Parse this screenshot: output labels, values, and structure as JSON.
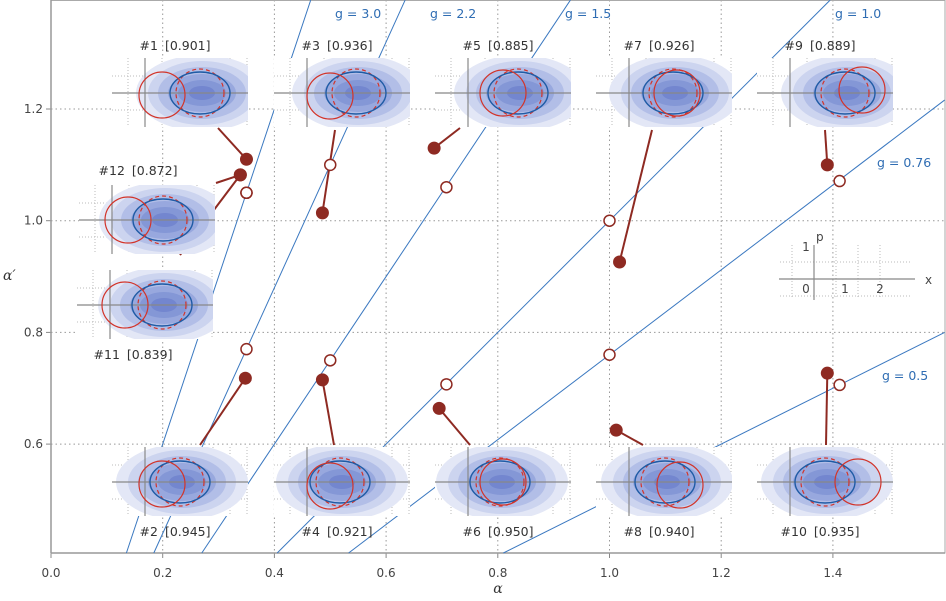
{
  "chart_data": {
    "type": "scatter",
    "xlabel": "α",
    "ylabel": "α′",
    "xlim": [
      0.0,
      1.6
    ],
    "ylim": [
      0.405,
      1.395
    ],
    "grid": true,
    "xticks": [
      {
        "value": 0.0,
        "label": "0.0"
      },
      {
        "value": 0.2,
        "label": "0.2"
      },
      {
        "value": 0.4,
        "label": "0.4"
      },
      {
        "value": 0.6,
        "label": "0.6"
      },
      {
        "value": 0.8,
        "label": "0.8"
      },
      {
        "value": 1.0,
        "label": "1.0"
      },
      {
        "value": 1.2,
        "label": "1.2"
      },
      {
        "value": 1.4,
        "label": "1.4"
      }
    ],
    "yticks": [
      {
        "value": 0.6,
        "label": "0.6"
      },
      {
        "value": 0.8,
        "label": "0.8"
      },
      {
        "value": 1.0,
        "label": "1.0"
      },
      {
        "value": 1.2,
        "label": "1.2"
      }
    ],
    "gain_lines": [
      {
        "g": 3.0,
        "label": "g = 3.0"
      },
      {
        "g": 2.2,
        "label": "g = 2.2"
      },
      {
        "g": 1.5,
        "label": "g = 1.5"
      },
      {
        "g": 1.0,
        "label": "g = 1.0"
      },
      {
        "g": 0.76,
        "label": "g = 0.76"
      },
      {
        "g": 0.5,
        "label": "g = 0.5"
      }
    ],
    "panels": [
      {
        "id": "#1",
        "fidelity": "[0.901]",
        "target": [
          0.35,
          1.05
        ],
        "measured": [
          0.35,
          1.11
        ]
      },
      {
        "id": "#2",
        "fidelity": "[0.945]",
        "target": [
          0.35,
          0.77
        ],
        "measured": [
          0.348,
          0.718
        ]
      },
      {
        "id": "#3",
        "fidelity": "[0.936]",
        "target": [
          0.5,
          1.1
        ],
        "measured": [
          0.486,
          1.014
        ]
      },
      {
        "id": "#4",
        "fidelity": "[0.921]",
        "target": [
          0.5,
          0.75
        ],
        "measured": [
          0.486,
          0.715
        ]
      },
      {
        "id": "#5",
        "fidelity": "[0.885]",
        "target": [
          0.708,
          1.06
        ],
        "measured": [
          0.686,
          1.13
        ]
      },
      {
        "id": "#6",
        "fidelity": "[0.950]",
        "target": [
          0.708,
          0.707
        ],
        "measured": [
          0.695,
          0.664
        ]
      },
      {
        "id": "#7",
        "fidelity": "[0.926]",
        "target": [
          1.0,
          1.0
        ],
        "measured": [
          1.018,
          0.926
        ]
      },
      {
        "id": "#8",
        "fidelity": "[0.940]",
        "target": [
          1.0,
          0.76
        ],
        "measured": [
          1.012,
          0.625
        ]
      },
      {
        "id": "#9",
        "fidelity": "[0.889]",
        "target": [
          1.412,
          1.071
        ],
        "measured": [
          1.39,
          1.1
        ]
      },
      {
        "id": "#10",
        "fidelity": "[0.935]",
        "target": [
          1.412,
          0.706
        ],
        "measured": [
          1.39,
          0.727
        ]
      },
      {
        "id": "#11",
        "fidelity": "[0.839]",
        "target": [
          0.35,
          1.05
        ],
        "measured": [
          0.339,
          1.082
        ]
      },
      {
        "id": "#12",
        "fidelity": "[0.872]",
        "target": [
          0.35,
          1.05
        ],
        "measured": [
          0.339,
          1.082
        ]
      }
    ],
    "inset": {
      "xlabel": "x",
      "ylabel": "p",
      "xticks": [
        "0",
        "1",
        "2"
      ],
      "yticks": [
        "1"
      ]
    },
    "colors": {
      "gain_line": "#3a78c0",
      "measured_point": "#8e2a22",
      "target_ring": "#8e2a22",
      "red_circle": "#d2342a",
      "blue_contour": "#1f5ba5",
      "density": "#6f86cf"
    }
  }
}
